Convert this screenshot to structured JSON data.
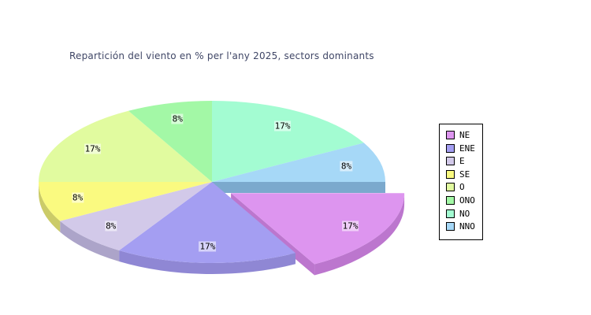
{
  "chart_data": {
    "type": "pie",
    "style": "3d-exploded",
    "title": "Repartición del viento en % per l'any 2025, sectors dominants",
    "title_color": "#3F4666",
    "unit": "%",
    "legend_position": "right",
    "background_color": "#FFFFFF",
    "sectors": [
      {
        "label": "NE",
        "value": 17,
        "color": "#DD95EF",
        "side_color": "#BC76CE",
        "exploded": true
      },
      {
        "label": "ENE",
        "value": 17,
        "color": "#A49EF2",
        "side_color": "#8F87D4",
        "exploded": false
      },
      {
        "label": "E",
        "value": 8,
        "color": "#D2C9E9",
        "side_color": "#ACA4C9",
        "exploded": false
      },
      {
        "label": "SE",
        "value": 8,
        "color": "#FAFA80",
        "side_color": "#CBCB68",
        "exploded": false
      },
      {
        "label": "O",
        "value": 17,
        "color": "#E1FB9F",
        "side_color": "#BACF83",
        "exploded": false
      },
      {
        "label": "ONO",
        "value": 8,
        "color": "#A3F8A6",
        "side_color": "#86CC89",
        "exploded": false
      },
      {
        "label": "NO",
        "value": 17,
        "color": "#A3FCD2",
        "side_color": "#85D0AC",
        "exploded": false
      },
      {
        "label": "NNO",
        "value": 8,
        "color": "#A6D8F7",
        "side_color": "#7BA9CD",
        "exploded": false
      }
    ]
  }
}
